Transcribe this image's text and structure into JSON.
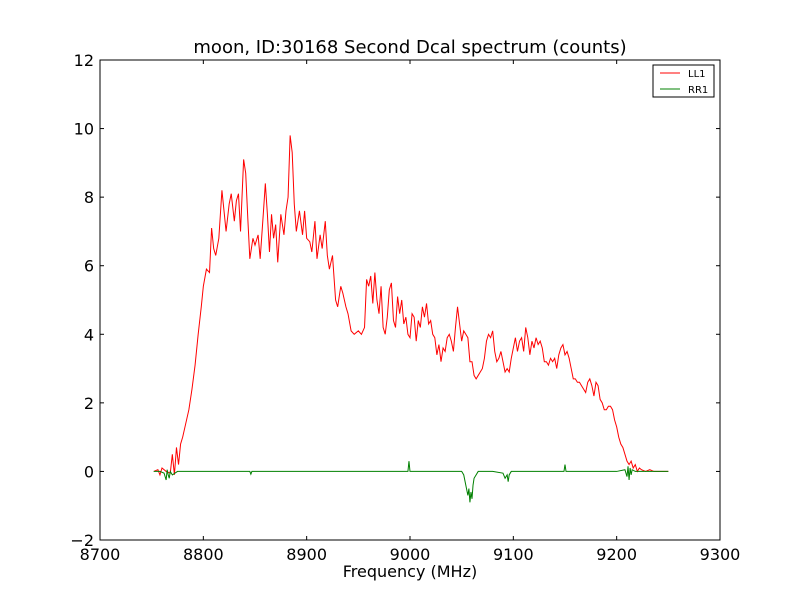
{
  "chart_data": {
    "type": "line",
    "title": "moon, ID:30168 Second Dcal spectrum (counts)",
    "xlabel": "Frequency (MHz)",
    "ylabel": "",
    "xlim": [
      8700,
      9300
    ],
    "ylim": [
      -2,
      12
    ],
    "xticks": [
      8700,
      8800,
      8900,
      9000,
      9100,
      9200,
      9300
    ],
    "yticks": [
      -2,
      0,
      2,
      4,
      6,
      8,
      10,
      12
    ],
    "xtick_labels": [
      "8700",
      "8800",
      "8900",
      "9000",
      "9100",
      "9200",
      "9300"
    ],
    "ytick_labels": [
      "−2",
      "0",
      "2",
      "4",
      "6",
      "8",
      "10",
      "12"
    ],
    "grid": false,
    "legend_position": "top-right",
    "series": [
      {
        "name": "LL1",
        "color": "#ff0000",
        "points": [
          [
            8752,
            0.0
          ],
          [
            8756,
            0.05
          ],
          [
            8758,
            -0.1
          ],
          [
            8760,
            0.1
          ],
          [
            8764,
            0.0
          ],
          [
            8768,
            -0.05
          ],
          [
            8770,
            0.5
          ],
          [
            8772,
            -0.1
          ],
          [
            8774,
            0.7
          ],
          [
            8776,
            0.2
          ],
          [
            8778,
            0.8
          ],
          [
            8780,
            1.0
          ],
          [
            8783,
            1.4
          ],
          [
            8786,
            1.8
          ],
          [
            8789,
            2.4
          ],
          [
            8792,
            3.1
          ],
          [
            8795,
            4.0
          ],
          [
            8798,
            4.8
          ],
          [
            8800,
            5.4
          ],
          [
            8803,
            5.9
          ],
          [
            8806,
            5.8
          ],
          [
            8808,
            7.1
          ],
          [
            8810,
            6.5
          ],
          [
            8812,
            6.3
          ],
          [
            8815,
            6.8
          ],
          [
            8818,
            8.2
          ],
          [
            8820,
            7.6
          ],
          [
            8822,
            7.0
          ],
          [
            8825,
            7.8
          ],
          [
            8827,
            8.1
          ],
          [
            8830,
            7.3
          ],
          [
            8832,
            7.9
          ],
          [
            8834,
            8.1
          ],
          [
            8836,
            7.0
          ],
          [
            8839,
            9.1
          ],
          [
            8841,
            8.7
          ],
          [
            8843,
            7.4
          ],
          [
            8845,
            6.2
          ],
          [
            8848,
            6.8
          ],
          [
            8850,
            6.6
          ],
          [
            8853,
            6.9
          ],
          [
            8855,
            6.2
          ],
          [
            8858,
            7.5
          ],
          [
            8860,
            8.4
          ],
          [
            8862,
            7.5
          ],
          [
            8864,
            6.4
          ],
          [
            8866,
            7.5
          ],
          [
            8868,
            6.8
          ],
          [
            8870,
            7.2
          ],
          [
            8872,
            6.1
          ],
          [
            8875,
            7.5
          ],
          [
            8878,
            6.9
          ],
          [
            8880,
            7.6
          ],
          [
            8882,
            8.0
          ],
          [
            8884,
            9.8
          ],
          [
            8886,
            9.3
          ],
          [
            8888,
            7.8
          ],
          [
            8890,
            7.0
          ],
          [
            8893,
            7.6
          ],
          [
            8896,
            6.9
          ],
          [
            8898,
            7.6
          ],
          [
            8900,
            6.8
          ],
          [
            8903,
            6.7
          ],
          [
            8905,
            6.4
          ],
          [
            8908,
            7.3
          ],
          [
            8910,
            6.2
          ],
          [
            8913,
            6.9
          ],
          [
            8915,
            6.5
          ],
          [
            8918,
            7.3
          ],
          [
            8920,
            6.3
          ],
          [
            8922,
            5.9
          ],
          [
            8925,
            6.3
          ],
          [
            8928,
            5.0
          ],
          [
            8930,
            4.8
          ],
          [
            8933,
            5.4
          ],
          [
            8935,
            5.2
          ],
          [
            8938,
            4.8
          ],
          [
            8940,
            4.6
          ],
          [
            8943,
            4.1
          ],
          [
            8946,
            4.0
          ],
          [
            8950,
            4.1
          ],
          [
            8953,
            4.0
          ],
          [
            8956,
            4.2
          ],
          [
            8958,
            5.6
          ],
          [
            8960,
            5.4
          ],
          [
            8962,
            5.7
          ],
          [
            8964,
            4.9
          ],
          [
            8966,
            5.8
          ],
          [
            8968,
            5.0
          ],
          [
            8970,
            4.6
          ],
          [
            8972,
            5.4
          ],
          [
            8974,
            4.2
          ],
          [
            8976,
            4.0
          ],
          [
            8978,
            4.5
          ],
          [
            8980,
            5.3
          ],
          [
            8982,
            5.5
          ],
          [
            8984,
            4.4
          ],
          [
            8986,
            4.2
          ],
          [
            8988,
            5.1
          ],
          [
            8990,
            4.6
          ],
          [
            8992,
            5.0
          ],
          [
            8994,
            4.3
          ],
          [
            8996,
            4.5
          ],
          [
            8998,
            4.0
          ],
          [
            9000,
            3.9
          ],
          [
            9002,
            4.6
          ],
          [
            9004,
            4.5
          ],
          [
            9006,
            3.8
          ],
          [
            9008,
            4.4
          ],
          [
            9010,
            4.2
          ],
          [
            9012,
            4.8
          ],
          [
            9014,
            4.5
          ],
          [
            9016,
            4.9
          ],
          [
            9018,
            4.3
          ],
          [
            9020,
            4.4
          ],
          [
            9022,
            4.0
          ],
          [
            9024,
            3.9
          ],
          [
            9026,
            3.4
          ],
          [
            9028,
            3.7
          ],
          [
            9030,
            3.2
          ],
          [
            9032,
            3.6
          ],
          [
            9034,
            3.5
          ],
          [
            9036,
            3.9
          ],
          [
            9038,
            4.0
          ],
          [
            9040,
            3.8
          ],
          [
            9042,
            3.5
          ],
          [
            9044,
            4.2
          ],
          [
            9046,
            4.8
          ],
          [
            9048,
            4.3
          ],
          [
            9050,
            3.8
          ],
          [
            9052,
            4.1
          ],
          [
            9054,
            4.0
          ],
          [
            9056,
            3.9
          ],
          [
            9058,
            3.2
          ],
          [
            9060,
            3.2
          ],
          [
            9062,
            2.8
          ],
          [
            9064,
            2.7
          ],
          [
            9066,
            2.8
          ],
          [
            9068,
            2.9
          ],
          [
            9070,
            3.0
          ],
          [
            9072,
            3.3
          ],
          [
            9074,
            3.8
          ],
          [
            9076,
            4.0
          ],
          [
            9078,
            3.9
          ],
          [
            9080,
            4.1
          ],
          [
            9082,
            3.5
          ],
          [
            9084,
            3.2
          ],
          [
            9086,
            3.3
          ],
          [
            9088,
            3.5
          ],
          [
            9090,
            3.2
          ],
          [
            9092,
            2.9
          ],
          [
            9094,
            3.0
          ],
          [
            9096,
            2.9
          ],
          [
            9098,
            3.3
          ],
          [
            9100,
            3.6
          ],
          [
            9102,
            3.9
          ],
          [
            9104,
            3.5
          ],
          [
            9106,
            3.8
          ],
          [
            9108,
            3.9
          ],
          [
            9110,
            3.5
          ],
          [
            9112,
            4.2
          ],
          [
            9114,
            3.9
          ],
          [
            9116,
            3.4
          ],
          [
            9118,
            3.8
          ],
          [
            9120,
            3.6
          ],
          [
            9122,
            3.9
          ],
          [
            9124,
            3.7
          ],
          [
            9126,
            3.8
          ],
          [
            9128,
            3.6
          ],
          [
            9130,
            3.2
          ],
          [
            9132,
            3.2
          ],
          [
            9134,
            3.1
          ],
          [
            9136,
            3.3
          ],
          [
            9138,
            3.2
          ],
          [
            9140,
            3.3
          ],
          [
            9142,
            3.0
          ],
          [
            9144,
            3.4
          ],
          [
            9146,
            3.6
          ],
          [
            9148,
            3.7
          ],
          [
            9150,
            3.4
          ],
          [
            9152,
            3.5
          ],
          [
            9154,
            3.3
          ],
          [
            9156,
            3.0
          ],
          [
            9158,
            2.7
          ],
          [
            9160,
            2.7
          ],
          [
            9162,
            2.6
          ],
          [
            9164,
            2.6
          ],
          [
            9166,
            2.5
          ],
          [
            9168,
            2.4
          ],
          [
            9170,
            2.3
          ],
          [
            9172,
            2.6
          ],
          [
            9174,
            2.7
          ],
          [
            9176,
            2.5
          ],
          [
            9178,
            2.2
          ],
          [
            9180,
            2.6
          ],
          [
            9182,
            2.5
          ],
          [
            9184,
            2.1
          ],
          [
            9186,
            2.0
          ],
          [
            9188,
            1.8
          ],
          [
            9190,
            1.8
          ],
          [
            9192,
            1.9
          ],
          [
            9194,
            1.9
          ],
          [
            9196,
            1.8
          ],
          [
            9198,
            1.5
          ],
          [
            9200,
            1.3
          ],
          [
            9202,
            1.0
          ],
          [
            9204,
            0.8
          ],
          [
            9206,
            0.7
          ],
          [
            9208,
            0.5
          ],
          [
            9210,
            0.3
          ],
          [
            9212,
            0.2
          ],
          [
            9214,
            0.3
          ],
          [
            9216,
            0.1
          ],
          [
            9218,
            0.2
          ],
          [
            9220,
            0.0
          ],
          [
            9222,
            0.1
          ],
          [
            9224,
            0.05
          ],
          [
            9228,
            0.0
          ],
          [
            9232,
            0.05
          ],
          [
            9236,
            0.0
          ],
          [
            9240,
            0.0
          ],
          [
            9245,
            0.0
          ],
          [
            9250,
            0.0
          ]
        ]
      },
      {
        "name": "RR1",
        "color": "#008000",
        "points": [
          [
            8752,
            0.0
          ],
          [
            8758,
            0.0
          ],
          [
            8762,
            -0.05
          ],
          [
            8764,
            -0.25
          ],
          [
            8765,
            0.05
          ],
          [
            8766,
            -0.1
          ],
          [
            8767,
            -0.2
          ],
          [
            8768,
            0.0
          ],
          [
            8770,
            -0.1
          ],
          [
            8775,
            0.0
          ],
          [
            8800,
            0.0
          ],
          [
            8825,
            0.0
          ],
          [
            8845,
            0.0
          ],
          [
            8846,
            -0.08
          ],
          [
            8847,
            0.0
          ],
          [
            8880,
            0.0
          ],
          [
            8920,
            0.0
          ],
          [
            8960,
            0.0
          ],
          [
            8998,
            0.0
          ],
          [
            8999,
            0.3
          ],
          [
            9000,
            0.0
          ],
          [
            9030,
            0.0
          ],
          [
            9050,
            0.0
          ],
          [
            9052,
            -0.1
          ],
          [
            9054,
            -0.4
          ],
          [
            9056,
            -0.7
          ],
          [
            9057,
            -0.5
          ],
          [
            9058,
            -0.9
          ],
          [
            9059,
            -0.6
          ],
          [
            9060,
            -0.8
          ],
          [
            9061,
            -0.4
          ],
          [
            9062,
            -0.2
          ],
          [
            9064,
            -0.1
          ],
          [
            9066,
            0.0
          ],
          [
            9080,
            0.0
          ],
          [
            9090,
            -0.05
          ],
          [
            9092,
            -0.2
          ],
          [
            9094,
            -0.1
          ],
          [
            9095,
            -0.3
          ],
          [
            9096,
            -0.1
          ],
          [
            9098,
            0.0
          ],
          [
            9120,
            0.0
          ],
          [
            9149,
            0.0
          ],
          [
            9150,
            0.2
          ],
          [
            9151,
            0.0
          ],
          [
            9200,
            0.0
          ],
          [
            9208,
            0.05
          ],
          [
            9210,
            -0.15
          ],
          [
            9211,
            0.15
          ],
          [
            9212,
            -0.25
          ],
          [
            9213,
            0.1
          ],
          [
            9214,
            -0.1
          ],
          [
            9215,
            0.05
          ],
          [
            9218,
            0.0
          ],
          [
            9225,
            0.0
          ],
          [
            9250,
            0.0
          ]
        ]
      }
    ]
  }
}
